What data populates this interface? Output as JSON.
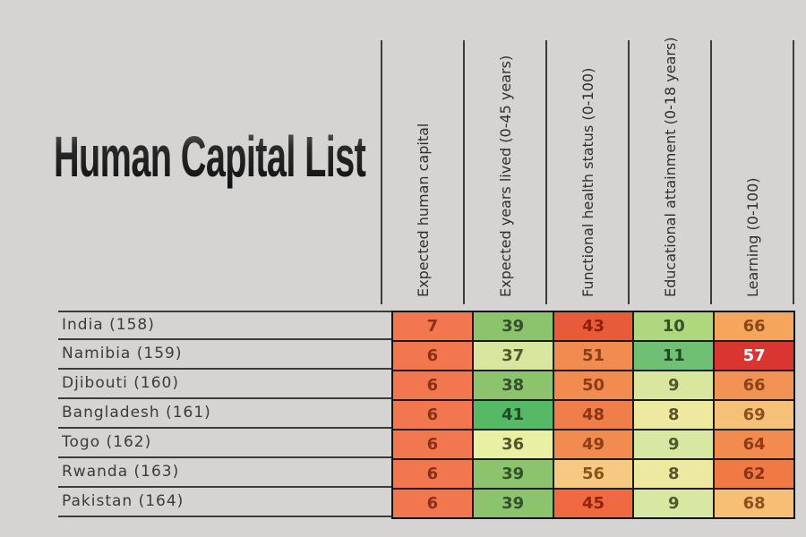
{
  "page": {
    "background": "#D5D4D2",
    "grid_line_color": "#3C3C3C",
    "cell_border_color": "#1C1C1C"
  },
  "chart_data": {
    "type": "table",
    "title": "Human Capital List",
    "columns": [
      "Expected human capital",
      "Expected years lived (0-45 years)",
      "Functional health status (0-100)",
      "Educational attainment (0-18 years)",
      "Learning (0-100)"
    ],
    "rows": [
      {
        "label": "India (158)",
        "cells": [
          {
            "v": "7",
            "bg": "#F2774E",
            "fg": "#8A3018"
          },
          {
            "v": "39",
            "bg": "#8CC46E",
            "fg": "#33502A"
          },
          {
            "v": "43",
            "bg": "#E85B38",
            "fg": "#8F1F0E"
          },
          {
            "v": "10",
            "bg": "#AED87D",
            "fg": "#33502A"
          },
          {
            "v": "66",
            "bg": "#F5A55C",
            "fg": "#8A4A18"
          }
        ]
      },
      {
        "label": "Namibia (159)",
        "cells": [
          {
            "v": "6",
            "bg": "#F2774E",
            "fg": "#8A3018"
          },
          {
            "v": "37",
            "bg": "#D9E79E",
            "fg": "#50592B"
          },
          {
            "v": "51",
            "bg": "#F28B50",
            "fg": "#8A3D18"
          },
          {
            "v": "11",
            "bg": "#6FC075",
            "fg": "#23471F"
          },
          {
            "v": "57",
            "bg": "#D93531",
            "fg": "#FFFFFF"
          }
        ]
      },
      {
        "label": "Djibouti (160)",
        "cells": [
          {
            "v": "6",
            "bg": "#F2774E",
            "fg": "#8A3018"
          },
          {
            "v": "38",
            "bg": "#8CC46E",
            "fg": "#33502A"
          },
          {
            "v": "50",
            "bg": "#F28B50",
            "fg": "#8A3D18"
          },
          {
            "v": "9",
            "bg": "#D9E69E",
            "fg": "#50592B"
          },
          {
            "v": "66",
            "bg": "#F29355",
            "fg": "#8A4418"
          }
        ]
      },
      {
        "label": "Bangladesh (161)",
        "cells": [
          {
            "v": "6",
            "bg": "#F2774E",
            "fg": "#8A3018"
          },
          {
            "v": "41",
            "bg": "#55B966",
            "fg": "#1F4A22"
          },
          {
            "v": "48",
            "bg": "#F07E4A",
            "fg": "#8A3518"
          },
          {
            "v": "8",
            "bg": "#EDE9A0",
            "fg": "#55562A"
          },
          {
            "v": "69",
            "bg": "#F5C178",
            "fg": "#8A521C"
          }
        ]
      },
      {
        "label": "Togo (162)",
        "cells": [
          {
            "v": "6",
            "bg": "#F2774E",
            "fg": "#8A3018"
          },
          {
            "v": "36",
            "bg": "#E9EFA3",
            "fg": "#55562A"
          },
          {
            "v": "49",
            "bg": "#F28B50",
            "fg": "#8A3D18"
          },
          {
            "v": "9",
            "bg": "#D7E8A2",
            "fg": "#50592B"
          },
          {
            "v": "64",
            "bg": "#F28B4D",
            "fg": "#8A3D18"
          }
        ]
      },
      {
        "label": "Rwanda (163)",
        "cells": [
          {
            "v": "6",
            "bg": "#F2774E",
            "fg": "#8A3018"
          },
          {
            "v": "39",
            "bg": "#8CC46E",
            "fg": "#33502A"
          },
          {
            "v": "56",
            "bg": "#F6C983",
            "fg": "#8A521C"
          },
          {
            "v": "8",
            "bg": "#EDE9A0",
            "fg": "#55562A"
          },
          {
            "v": "62",
            "bg": "#EF7A43",
            "fg": "#8A3318"
          }
        ]
      },
      {
        "label": "Pakistan (164)",
        "cells": [
          {
            "v": "6",
            "bg": "#F2774E",
            "fg": "#8A3018"
          },
          {
            "v": "39",
            "bg": "#8CC46E",
            "fg": "#33502A"
          },
          {
            "v": "45",
            "bg": "#EF6A40",
            "fg": "#8F240F"
          },
          {
            "v": "9",
            "bg": "#D7E8A2",
            "fg": "#50592B"
          },
          {
            "v": "68",
            "bg": "#F5BF75",
            "fg": "#8A521C"
          }
        ]
      }
    ]
  }
}
